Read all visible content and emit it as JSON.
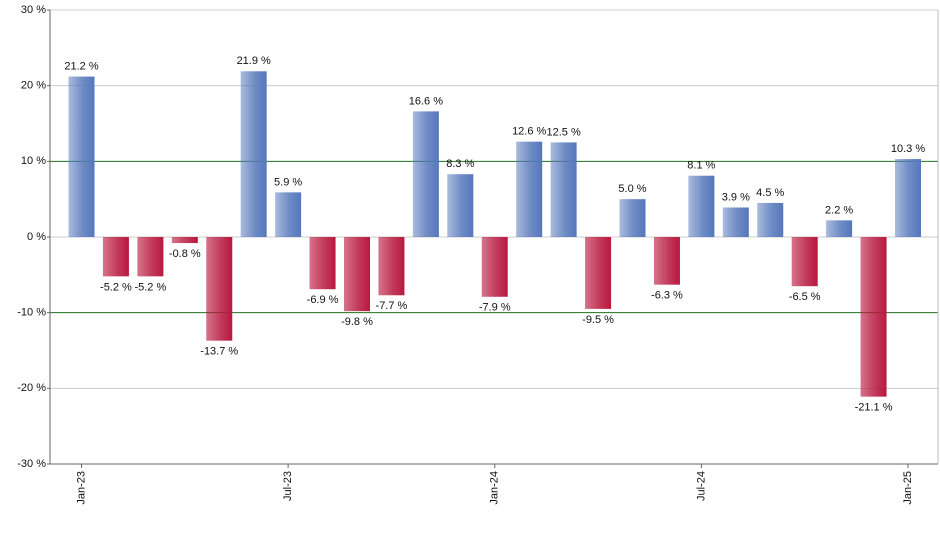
{
  "chart_data": {
    "type": "bar",
    "categories": [
      "Jan-23",
      null,
      null,
      null,
      null,
      null,
      "Jul-23",
      null,
      null,
      null,
      null,
      null,
      "Jan-24",
      null,
      null,
      null,
      null,
      null,
      "Jul-24",
      null,
      null,
      null,
      null,
      null,
      "Jan-25"
    ],
    "values": [
      21.2,
      -5.2,
      -5.2,
      -0.8,
      -13.7,
      21.9,
      5.9,
      -6.9,
      -9.8,
      -7.7,
      16.6,
      8.3,
      -7.9,
      12.6,
      12.5,
      -9.5,
      5.0,
      -6.3,
      8.1,
      3.9,
      4.5,
      -6.5,
      2.2,
      -21.1,
      10.3
    ],
    "value_labels": [
      "21.2 %",
      "-5.2 %",
      "-5.2 %",
      "-0.8 %",
      "-13.7 %",
      "21.9 %",
      "5.9 %",
      "-6.9 %",
      "-9.8 %",
      "-7.7 %",
      "16.6 %",
      "8.3 %",
      "-7.9 %",
      "12.6 %",
      "12.5 %",
      "-9.5 %",
      "5.0 %",
      "-6.3 %",
      "8.1 %",
      "3.9 %",
      "4.5 %",
      "-6.5 %",
      "2.2 %",
      "-21.1 %",
      "10.3 %"
    ],
    "positive_color": "#5577bb",
    "negative_color": "#b8183e",
    "ylim": [
      -30,
      30
    ],
    "yticks": [
      {
        "value": -30,
        "label": "-30 %"
      },
      {
        "value": -20,
        "label": "-20 %"
      },
      {
        "value": -10,
        "label": "-10 %"
      },
      {
        "value": 0,
        "label": "0 %"
      },
      {
        "value": 10,
        "label": "10 %"
      },
      {
        "value": 20,
        "label": "20 %"
      },
      {
        "value": 30,
        "label": "30 %"
      }
    ],
    "grid": true,
    "grid_color": "#cccccc",
    "highlight_lines": [
      -10,
      10
    ],
    "highlight_color": "#207020"
  }
}
